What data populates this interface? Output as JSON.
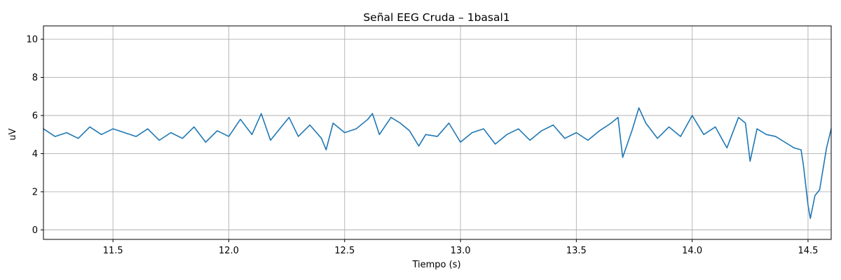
{
  "chart_data": {
    "type": "line",
    "title": "Señal EEG Cruda – 1basal1",
    "xlabel": "Tiempo (s)",
    "ylabel": "uV",
    "xlim": [
      11.2,
      14.6
    ],
    "ylim": [
      -0.5,
      10.7
    ],
    "xticks": [
      "11.5",
      "12.0",
      "12.5",
      "13.0",
      "13.5",
      "14.0",
      "14.5"
    ],
    "yticks": [
      "0",
      "2",
      "4",
      "6",
      "8",
      "10"
    ],
    "grid": true,
    "legend": "none",
    "colors": {
      "line": "#1f77b4",
      "grid": "#b0b0b0",
      "axis": "#000000"
    },
    "series": [
      {
        "x": [
          11.2,
          11.25,
          11.3,
          11.35,
          11.4,
          11.45,
          11.5,
          11.55,
          11.6,
          11.65,
          11.7,
          11.75,
          11.8,
          11.85,
          11.9,
          11.95,
          12.0,
          12.05,
          12.1,
          12.14,
          12.18,
          12.22,
          12.26,
          12.3,
          12.35,
          12.4,
          12.42,
          12.45,
          12.5,
          12.55,
          12.6,
          12.62,
          12.65,
          12.7,
          12.74,
          12.78,
          12.82,
          12.85,
          12.9,
          12.95,
          13.0,
          13.05,
          13.1,
          13.15,
          13.2,
          13.25,
          13.3,
          13.35,
          13.4,
          13.45,
          13.5,
          13.55,
          13.6,
          13.65,
          13.68,
          13.7,
          13.74,
          13.77,
          13.8,
          13.85,
          13.9,
          13.95,
          14.0,
          14.05,
          14.1,
          14.15,
          14.2,
          14.23,
          14.25,
          14.28,
          14.32,
          14.36,
          14.4,
          14.44,
          14.47,
          14.48,
          14.5,
          14.51,
          14.53,
          14.55,
          14.58,
          14.6
        ],
        "y": [
          5.3,
          4.9,
          5.1,
          4.8,
          5.4,
          5.0,
          5.3,
          5.1,
          4.9,
          5.3,
          4.7,
          5.1,
          4.8,
          5.4,
          4.6,
          5.2,
          4.9,
          5.8,
          5.0,
          6.1,
          4.7,
          5.3,
          5.9,
          4.9,
          5.5,
          4.8,
          4.2,
          5.6,
          5.1,
          5.3,
          5.8,
          6.1,
          5.0,
          5.9,
          5.6,
          5.2,
          4.4,
          5.0,
          4.9,
          5.6,
          4.6,
          5.1,
          5.3,
          4.5,
          5.0,
          5.3,
          4.7,
          5.2,
          5.5,
          4.8,
          5.1,
          4.7,
          5.2,
          5.6,
          5.9,
          3.8,
          5.2,
          6.4,
          5.6,
          4.8,
          5.4,
          4.9,
          6.0,
          5.0,
          5.4,
          4.3,
          5.9,
          5.6,
          3.6,
          5.3,
          5.0,
          4.9,
          4.6,
          4.3,
          4.2,
          3.4,
          1.3,
          0.6,
          1.8,
          2.1,
          4.3,
          5.3
        ]
      }
    ]
  }
}
